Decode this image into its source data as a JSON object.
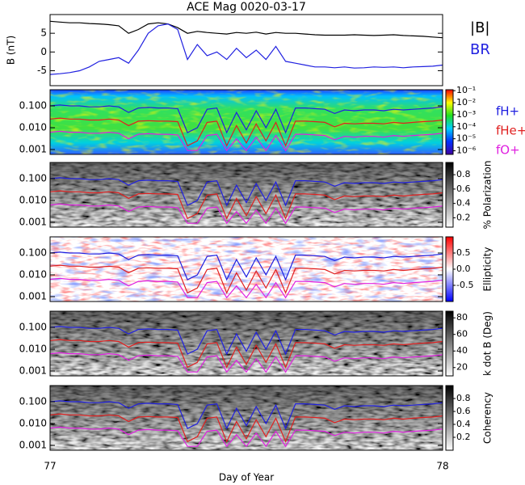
{
  "chart_data": [
    {
      "type": "line",
      "title": "ACE Mag 0020-03-17",
      "ylabel": "B (nT)",
      "x": [
        77,
        77.025,
        77.05,
        77.075,
        77.1,
        77.125,
        77.15,
        77.175,
        77.2,
        77.225,
        77.25,
        77.275,
        77.3,
        77.325,
        77.35,
        77.375,
        77.4,
        77.425,
        77.45,
        77.475,
        77.5,
        77.525,
        77.55,
        77.575,
        77.6,
        77.625,
        77.65,
        77.675,
        77.7,
        77.725,
        77.75,
        77.775,
        77.8,
        77.825,
        77.85,
        77.875,
        77.9,
        77.925,
        77.95,
        77.975,
        78
      ],
      "xlim": [
        77,
        78
      ],
      "xticks": [
        77,
        78
      ],
      "ylim": [
        -9,
        10
      ],
      "yticks": [
        -5,
        0,
        5
      ],
      "legend": "right",
      "series": [
        {
          "name": "|B|",
          "color": "#000000",
          "values": [
            8.2,
            8.0,
            7.8,
            7.8,
            7.6,
            7.5,
            7.3,
            7.0,
            5.0,
            6.0,
            7.5,
            7.8,
            7.5,
            6.5,
            5.0,
            5.5,
            5.2,
            5.0,
            4.8,
            5.2,
            5.0,
            5.3,
            4.8,
            5.2,
            5.0,
            5.0,
            4.8,
            4.6,
            4.5,
            4.5,
            4.5,
            4.6,
            4.5,
            4.4,
            4.5,
            4.6,
            4.4,
            4.3,
            4.2,
            4.0,
            3.8
          ]
        },
        {
          "name": "BR",
          "color": "#2020e0",
          "values": [
            -6.0,
            -5.8,
            -5.5,
            -5.0,
            -4.0,
            -2.5,
            -2.0,
            -1.5,
            -3.0,
            0.5,
            5.0,
            7.0,
            7.5,
            6.0,
            -2.0,
            2.0,
            -1.0,
            0.0,
            -2.0,
            1.0,
            -1.5,
            0.5,
            -2.0,
            1.5,
            -2.5,
            -3.0,
            -3.5,
            -4.0,
            -4.0,
            -4.2,
            -4.0,
            -4.3,
            -4.2,
            -4.0,
            -4.1,
            -4.0,
            -4.2,
            -4.0,
            -3.9,
            -3.8,
            -3.5
          ]
        }
      ]
    },
    {
      "type": "spectrogram",
      "xlabel": "Day of Year",
      "x": [
        77,
        77.025,
        77.05,
        77.075,
        77.1,
        77.125,
        77.15,
        77.175,
        77.2,
        77.225,
        77.25,
        77.275,
        77.3,
        77.325,
        77.35,
        77.375,
        77.4,
        77.425,
        77.45,
        77.475,
        77.5,
        77.525,
        77.55,
        77.575,
        77.6,
        77.625,
        77.65,
        77.675,
        77.7,
        77.725,
        77.75,
        77.775,
        77.8,
        77.825,
        77.85,
        77.875,
        77.9,
        77.925,
        77.95,
        77.975,
        78
      ],
      "xlim": [
        77,
        78
      ],
      "xticks": [
        77,
        78
      ],
      "ylim": [
        0.0006,
        0.55
      ],
      "yscale": "log",
      "yticks": [
        0.001,
        {
          "value": 0.01,
          "label": "0.010"
        },
        {
          "value": 0.1,
          "label": "0.100"
        }
      ],
      "legend": "right",
      "series": [
        {
          "name": "fH+",
          "color": "#2020e0",
          "values": [
            0.1,
            0.11,
            0.1,
            0.1,
            0.09,
            0.09,
            0.1,
            0.09,
            0.05,
            0.08,
            0.085,
            0.08,
            0.08,
            0.075,
            0.006,
            0.01,
            0.07,
            0.08,
            0.006,
            0.05,
            0.008,
            0.06,
            0.01,
            0.07,
            0.006,
            0.08,
            0.08,
            0.075,
            0.07,
            0.045,
            0.065,
            0.06,
            0.065,
            0.065,
            0.06,
            0.07,
            0.065,
            0.07,
            0.075,
            0.08,
            0.09
          ]
        },
        {
          "name": "fHe+",
          "color": "#e02020",
          "values": [
            0.025,
            0.0275,
            0.025,
            0.025,
            0.0225,
            0.0225,
            0.025,
            0.0225,
            0.0125,
            0.02,
            0.021,
            0.02,
            0.02,
            0.019,
            0.0015,
            0.0025,
            0.0175,
            0.02,
            0.0015,
            0.0125,
            0.002,
            0.015,
            0.0025,
            0.0175,
            0.0015,
            0.02,
            0.02,
            0.019,
            0.0175,
            0.011,
            0.016,
            0.015,
            0.016,
            0.016,
            0.015,
            0.0175,
            0.016,
            0.0175,
            0.019,
            0.02,
            0.0225
          ]
        },
        {
          "name": "fO+",
          "color": "#e020e0",
          "values": [
            0.0062,
            0.0069,
            0.0062,
            0.0062,
            0.0056,
            0.0056,
            0.0062,
            0.0056,
            0.0031,
            0.005,
            0.0053,
            0.005,
            0.005,
            0.0047,
            0.0009,
            0.0009,
            0.0044,
            0.005,
            0.0009,
            0.0031,
            0.0009,
            0.0037,
            0.0009,
            0.0044,
            0.0009,
            0.005,
            0.005,
            0.0047,
            0.0044,
            0.0028,
            0.004,
            0.0037,
            0.004,
            0.004,
            0.0037,
            0.0044,
            0.004,
            0.0044,
            0.0047,
            0.005,
            0.0056
          ]
        }
      ],
      "panels": [
        {
          "colormap": "rainbow",
          "cscale": "log",
          "clim": [
            5e-07,
            0.12
          ],
          "cticks": [
            {
              "value": 0.1,
              "label": "10⁻¹"
            },
            {
              "value": 0.01,
              "label": "10⁻²"
            },
            {
              "value": 0.001,
              "label": "10⁻³"
            },
            {
              "value": 0.0001,
              "label": "10⁻⁴"
            },
            {
              "value": 1e-05,
              "label": "10⁻⁵"
            },
            {
              "value": 1e-06,
              "label": "10⁻⁶"
            }
          ]
        },
        {
          "colormap": "gray",
          "colorbar_label": "% Polarization",
          "clim": [
            0.07,
            0.97
          ],
          "cticks": [
            0.2,
            0.4,
            0.6,
            0.8
          ]
        },
        {
          "colormap": "bwr",
          "colorbar_label": "Ellipticity",
          "clim": [
            -1,
            1
          ],
          "cticks": [
            -0.5,
            {
              "value": 0,
              "label": "0.0"
            },
            0.5
          ]
        },
        {
          "colormap": "gray",
          "colorbar_label": "k dot B (Deg)",
          "clim": [
            10,
            88
          ],
          "cticks": [
            20,
            40,
            60,
            80
          ]
        },
        {
          "colormap": "gray",
          "colorbar_label": "Coherency",
          "clim": [
            0,
            1
          ],
          "cticks": [
            0.2,
            0.4,
            0.6,
            0.8
          ]
        }
      ]
    }
  ]
}
